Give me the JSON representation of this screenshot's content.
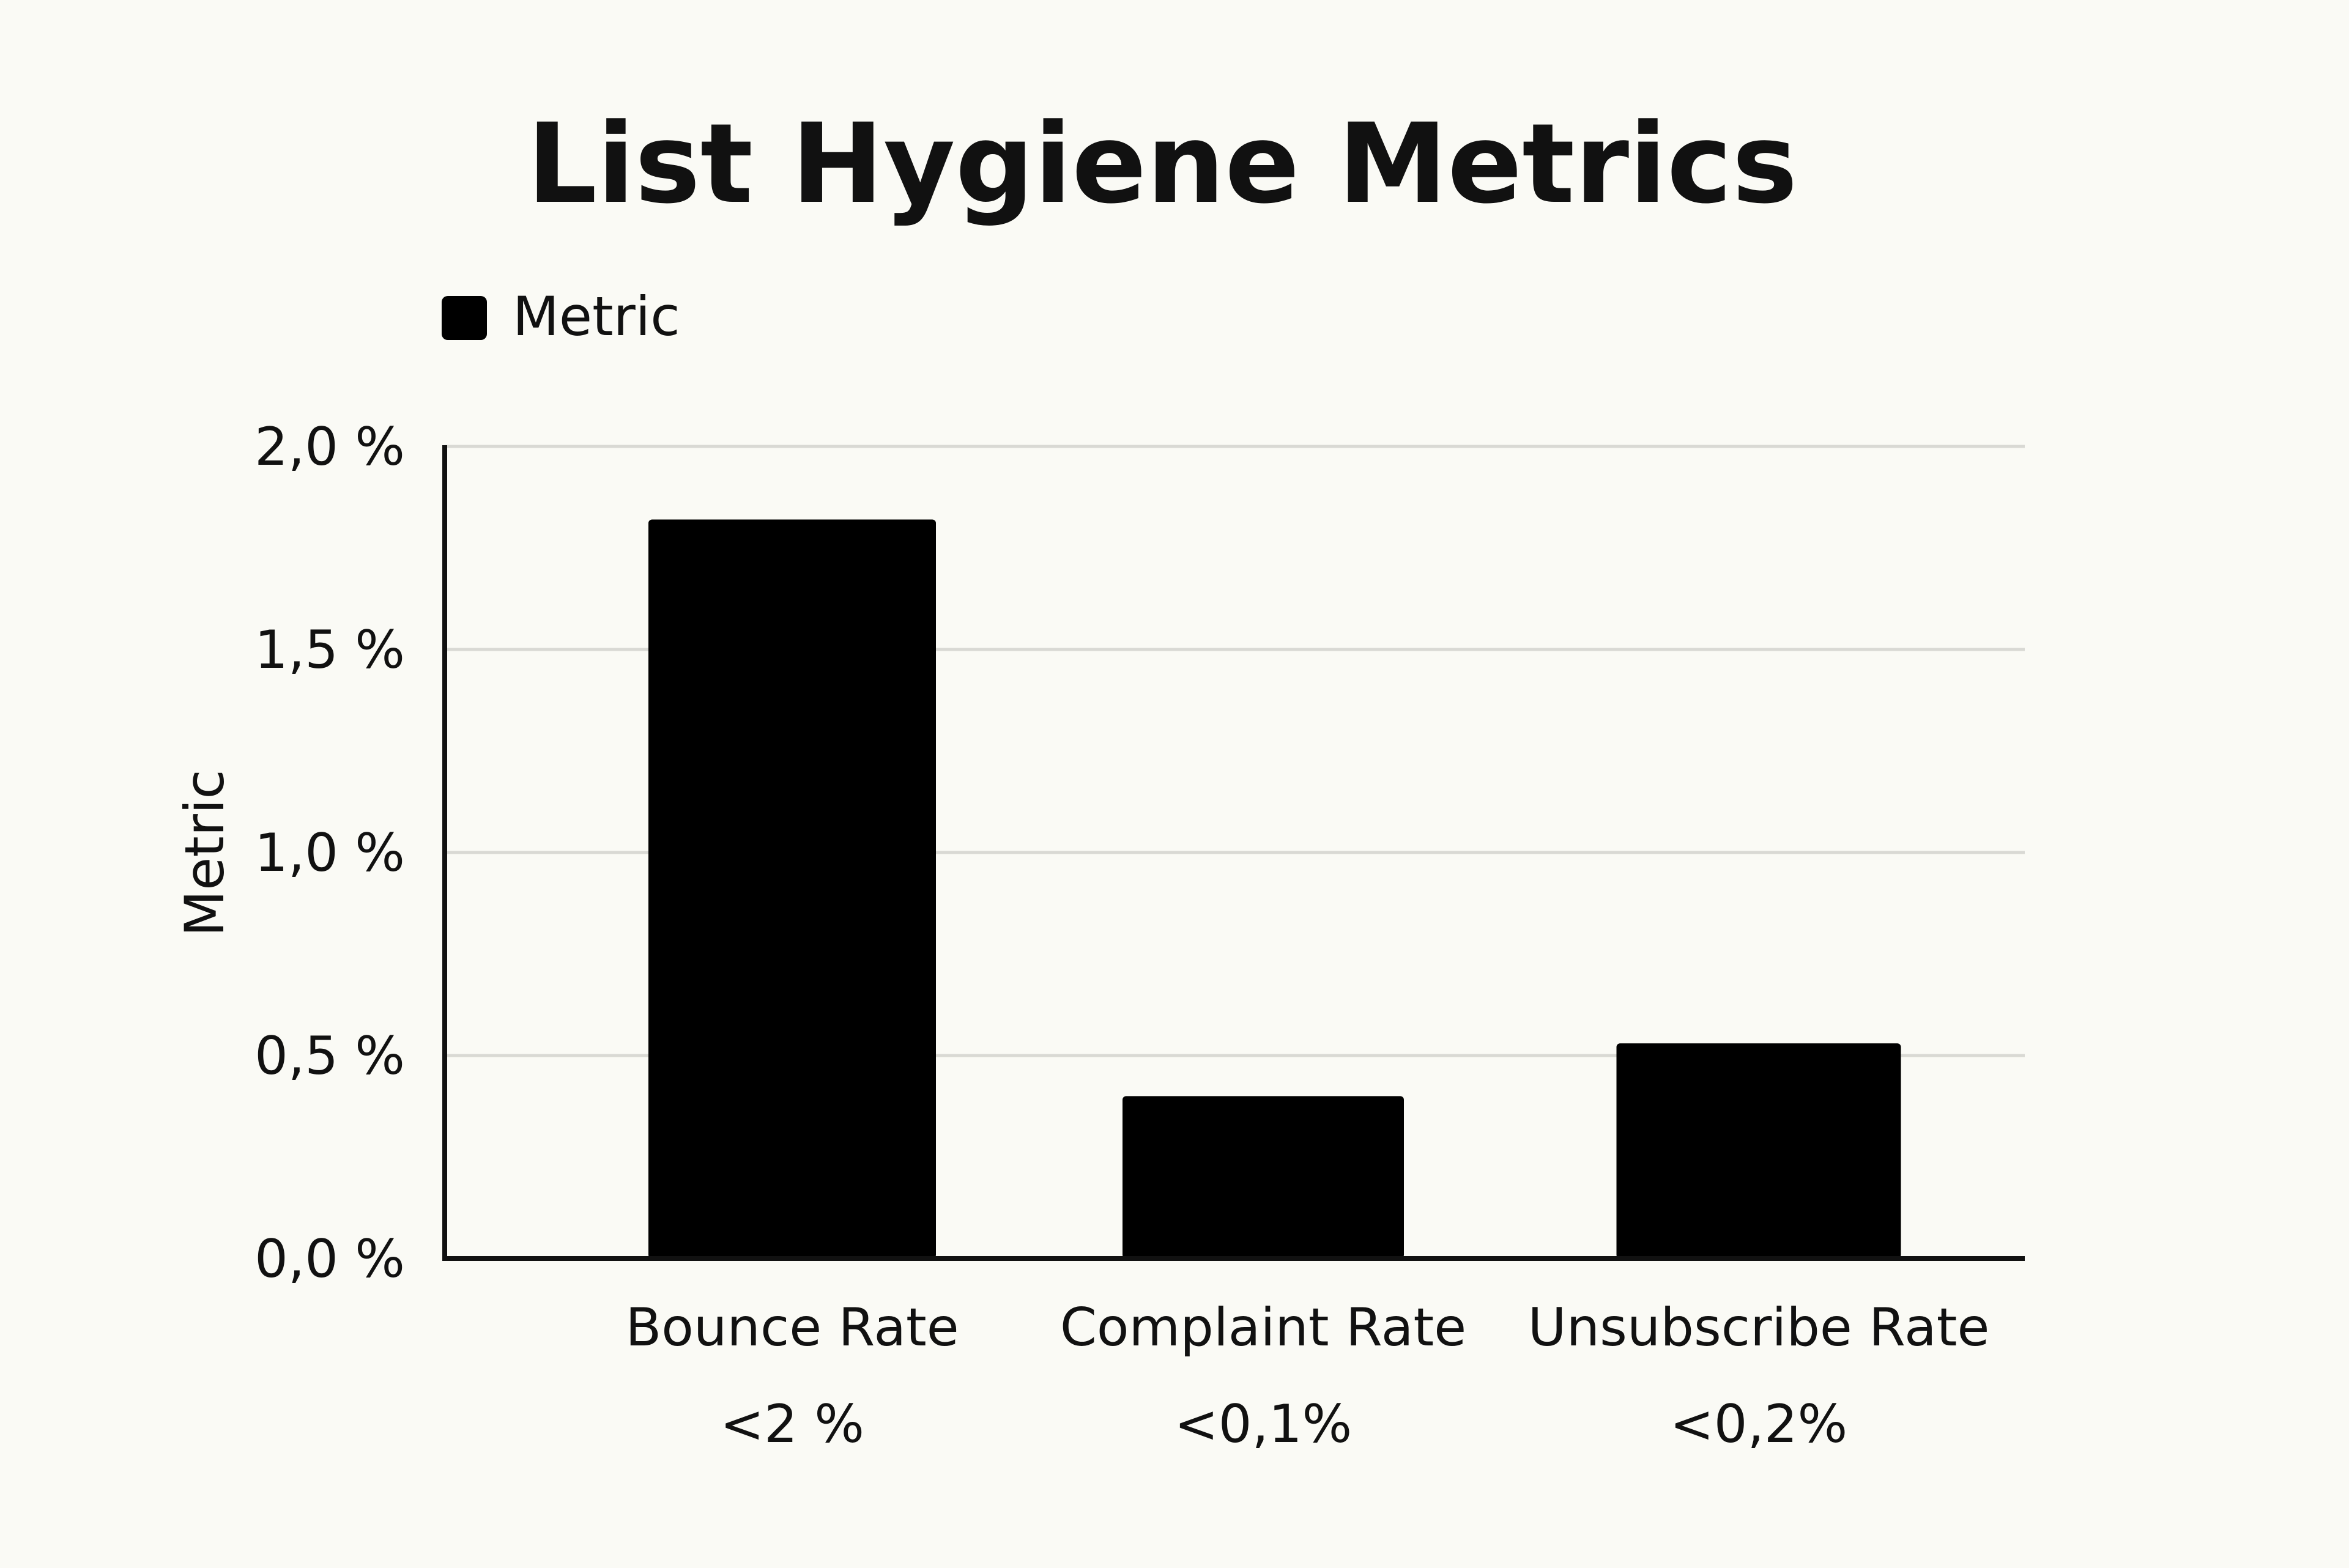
{
  "chart_data": {
    "type": "bar",
    "title": "List Hygiene Metrics",
    "legend": {
      "position": "top-left",
      "entries": [
        "Metric"
      ]
    },
    "ylabel": "Metric",
    "xlabel": "",
    "categories": [
      "Bounce Rate",
      "Complaint Rate",
      "Unsubscribe Rate"
    ],
    "category_sublabels": [
      "<2 %",
      "<0,1%",
      "<0,2%"
    ],
    "series": [
      {
        "name": "Metric",
        "values": [
          1.82,
          0.4,
          0.53
        ]
      }
    ],
    "ylim": [
      0,
      2
    ],
    "yticks": [
      0,
      0.5,
      1,
      1.5,
      2
    ],
    "ytick_labels": [
      "0,0 %",
      "0,5 %",
      "1,0 %",
      "1,5 %",
      "2,0 %"
    ],
    "grid": true,
    "colors": {
      "background": "#fafaf5",
      "bar": "#000000",
      "gridline": "#d9d9d4",
      "axis": "#111111",
      "text": "#111111"
    }
  }
}
